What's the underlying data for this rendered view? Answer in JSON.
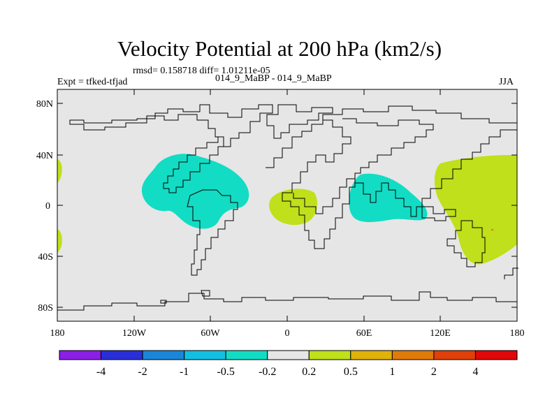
{
  "title": "Velocity Potential at 200 hPa (km2/s)",
  "stats": "rmsd= 0.158718 diff= 1.01211e-05",
  "experiment": "Expt = tfked-tfjad",
  "case": "014_9_MaBP - 014_9_MaBP",
  "season": "JJA",
  "lat_ticks": [
    "80N",
    "40N",
    "0",
    "40S",
    "80S"
  ],
  "lon_ticks": [
    "180",
    "120W",
    "60W",
    "0",
    "60E",
    "120E",
    "180"
  ],
  "colorbar": {
    "labels": [
      "-4",
      "-2",
      "-1",
      "-0.5",
      "-0.2",
      "0.2",
      "0.5",
      "1",
      "2",
      "4"
    ],
    "colors": [
      "#8a1fe6",
      "#2a2ed8",
      "#1a86d8",
      "#12bfe0",
      "#13dcc4",
      "#e6e6e6",
      "#bfe01a",
      "#e0b20a",
      "#e07a0a",
      "#e0400a",
      "#e00808"
    ]
  },
  "map": {
    "background": "#e6e6e6",
    "positive_fill": "#bfe01a",
    "negative_fill": "#13dcc4"
  }
}
